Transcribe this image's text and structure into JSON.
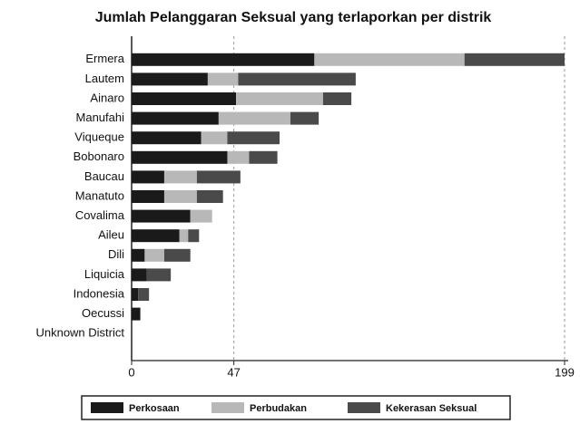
{
  "chart_data": {
    "type": "stacked_barh",
    "title": "Jumlah Pelanggaran Seksual yang terlaporkan per distrik",
    "categories": [
      "Ermera",
      "Lautem",
      "Ainaro",
      "Manufahi",
      "Viqueque",
      "Bobonaro",
      "Baucau",
      "Manatuto",
      "Covalima",
      "Aileu",
      "Dili",
      "Liquicia",
      "Indonesia",
      "Oecussi",
      "Unknown District"
    ],
    "series": [
      {
        "name": "Perkosaan",
        "color": "#1a1a1a",
        "values": [
          84,
          35,
          48,
          40,
          32,
          44,
          15,
          15,
          27,
          22,
          6,
          7,
          3,
          4,
          0
        ]
      },
      {
        "name": "Perbudakan",
        "color": "#b8b8b8",
        "values": [
          69,
          14,
          40,
          33,
          12,
          10,
          15,
          15,
          10,
          4,
          9,
          0,
          0,
          0,
          0
        ]
      },
      {
        "name": "Kekerasan Seksual",
        "color": "#4a4a4a",
        "values": [
          46,
          54,
          13,
          13,
          24,
          13,
          20,
          12,
          0,
          5,
          12,
          11,
          5,
          0,
          0
        ]
      }
    ],
    "xlim": [
      0,
      199
    ],
    "xticks": [
      0,
      47,
      199
    ],
    "grid": true,
    "legend": "bottom"
  }
}
